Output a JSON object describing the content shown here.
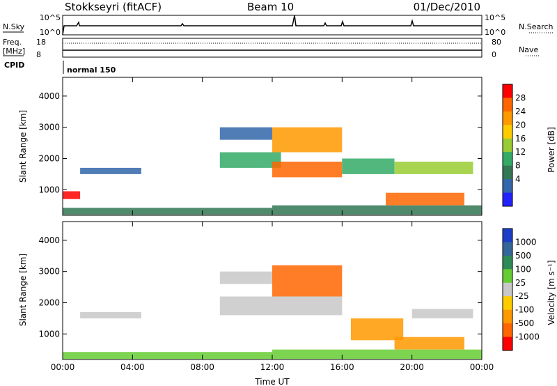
{
  "header": {
    "title": "Stokkseyri (fitACF)",
    "beam": "Beam 10",
    "date": "01/Dec/2010"
  },
  "top_panel": {
    "left_label": "N.Sky",
    "right_label": "N.Search",
    "left_ticks": [
      "10^5",
      "10^0"
    ],
    "right_ticks": [
      "10^5",
      "10^0"
    ]
  },
  "freq_panel": {
    "left_label_line1": "Freq.",
    "left_label_line2": "[MHz]",
    "right_label": "Nave",
    "left_ticks": [
      "18",
      "8"
    ],
    "right_ticks": [
      "80",
      "0"
    ]
  },
  "cpid": {
    "label": "CPID",
    "mode": "normal 150"
  },
  "chart_data": [
    {
      "type": "heatmap",
      "panel": "power",
      "ylabel": "Slant Range [km]",
      "ylim": [
        180,
        4600
      ],
      "yticks": [
        "1000",
        "2000",
        "3000",
        "4000"
      ],
      "colorbar_label": "Power [dB]",
      "colorbar_ticks": [
        "28",
        "24",
        "20",
        "16",
        "12",
        "8",
        "4"
      ],
      "colorbar_colors": [
        "#ff0000",
        "#ff6600",
        "#ff9900",
        "#ffcc00",
        "#99cc33",
        "#33aa66",
        "#337755",
        "#3366aa",
        "#2222ff"
      ],
      "regions": [
        {
          "t0": 0.0,
          "t1": 1.0,
          "r0": 700,
          "r1": 950,
          "level": 0
        },
        {
          "t0": 1.0,
          "t1": 4.5,
          "r0": 1500,
          "r1": 1700,
          "level": 7
        },
        {
          "t0": 0.0,
          "t1": 12.0,
          "r0": 200,
          "r1": 420,
          "level": 6
        },
        {
          "t0": 9.0,
          "t1": 12.0,
          "r0": 2600,
          "r1": 3000,
          "level": 7
        },
        {
          "t0": 9.0,
          "t1": 12.5,
          "r0": 1700,
          "r1": 2200,
          "level": 5
        },
        {
          "t0": 12.0,
          "t1": 16.0,
          "r0": 1400,
          "r1": 1900,
          "level": 1
        },
        {
          "t0": 12.0,
          "t1": 16.0,
          "r0": 2200,
          "r1": 3000,
          "level": 2
        },
        {
          "t0": 16.0,
          "t1": 19.0,
          "r0": 1500,
          "r1": 2000,
          "level": 5
        },
        {
          "t0": 18.5,
          "t1": 23.0,
          "r0": 500,
          "r1": 900,
          "level": 1
        },
        {
          "t0": 19.0,
          "t1": 23.5,
          "r0": 1500,
          "r1": 1900,
          "level": 4
        },
        {
          "t0": 12.0,
          "t1": 24.0,
          "r0": 200,
          "r1": 500,
          "level": 6
        }
      ]
    },
    {
      "type": "heatmap",
      "panel": "velocity",
      "ylabel": "Slant Range [km]",
      "xlabel": "Time UT",
      "ylim": [
        180,
        4600
      ],
      "xlim": [
        0,
        24
      ],
      "xticks": [
        "00:00",
        "04:00",
        "08:00",
        "12:00",
        "16:00",
        "20:00",
        "00:00"
      ],
      "yticks": [
        "1000",
        "2000",
        "3000",
        "4000"
      ],
      "colorbar_label": "Velocity [m s⁻¹]",
      "colorbar_ticks": [
        "1000",
        "500",
        "100",
        "25",
        "-25",
        "-100",
        "-500",
        "-1000"
      ],
      "colorbar_colors": [
        "#1a3ec8",
        "#336699",
        "#2e8b57",
        "#66cc33",
        "#c8c8c8",
        "#ffcc00",
        "#ff9900",
        "#ff6600",
        "#ff0000"
      ],
      "regions": [
        {
          "t0": 1.0,
          "t1": 4.5,
          "r0": 1500,
          "r1": 1700,
          "level": 4
        },
        {
          "t0": 0.0,
          "t1": 12.0,
          "r0": 200,
          "r1": 420,
          "level": 3
        },
        {
          "t0": 9.0,
          "t1": 12.0,
          "r0": 2600,
          "r1": 3000,
          "level": 4
        },
        {
          "t0": 9.0,
          "t1": 16.0,
          "r0": 1600,
          "r1": 2200,
          "level": 4
        },
        {
          "t0": 12.0,
          "t1": 16.0,
          "r0": 2200,
          "r1": 3200,
          "level": 7
        },
        {
          "t0": 16.5,
          "t1": 19.5,
          "r0": 800,
          "r1": 1500,
          "level": 6
        },
        {
          "t0": 19.0,
          "t1": 23.0,
          "r0": 500,
          "r1": 900,
          "level": 6
        },
        {
          "t0": 20.0,
          "t1": 23.5,
          "r0": 1500,
          "r1": 1800,
          "level": 4
        },
        {
          "t0": 12.0,
          "t1": 24.0,
          "r0": 200,
          "r1": 500,
          "level": 3
        }
      ]
    }
  ]
}
